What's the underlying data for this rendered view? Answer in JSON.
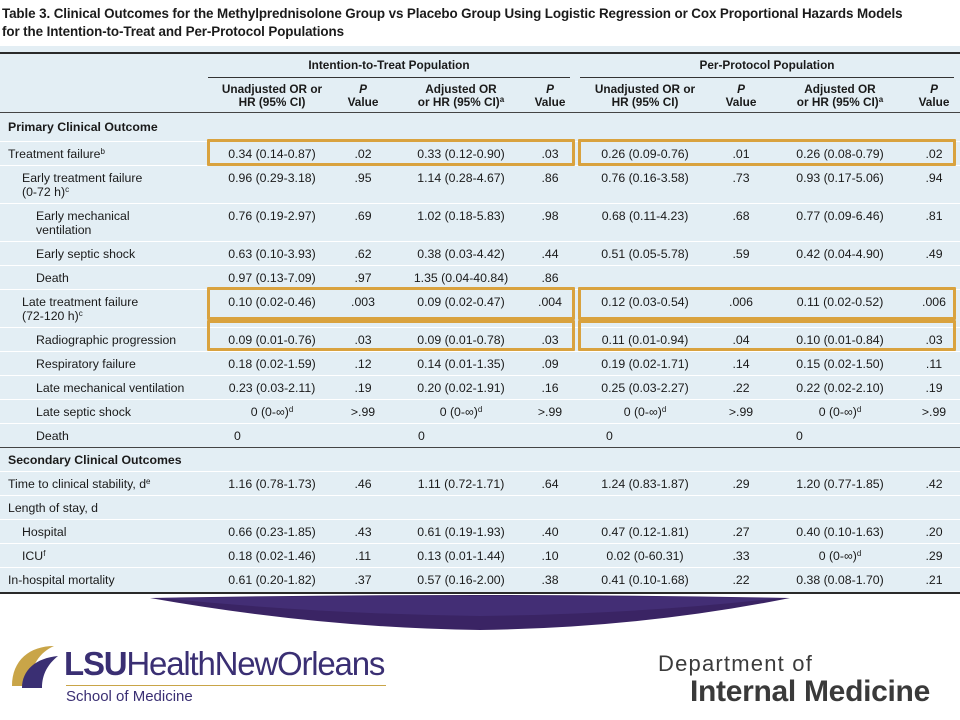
{
  "title": {
    "line1": "Table 3. Clinical Outcomes for the Methylprednisolone Group vs Placebo Group Using Logistic Regression or Cox Proportional Hazards Models",
    "line2": "for the Intention-to-Treat and Per-Protocol Populations"
  },
  "groups": {
    "itt": "Intention-to-Treat Population",
    "pp": "Per-Protocol Population"
  },
  "headers": {
    "unadj_1": "Unadjusted OR or",
    "unadj_2": "HR (95% CI)",
    "p_1": "P",
    "p_2": "Value",
    "adj_1": "Adjusted OR",
    "adj_2": "or HR (95% CI)",
    "adj_sup": "a"
  },
  "sections": {
    "primary": "Primary Clinical Outcome",
    "secondary": "Secondary Clinical Outcomes"
  },
  "rows": [
    {
      "l1": "Treatment failure",
      "sup": "b",
      "indent": 0,
      "v": [
        "0.34 (0.14-0.87)",
        ".02",
        "0.33 (0.12-0.90)",
        ".03",
        "0.26 (0.09-0.76)",
        ".01",
        "0.26 (0.08-0.79)",
        ".02"
      ]
    },
    {
      "l1": "Early treatment failure",
      "l2": "(0-72 h)",
      "sup": "c",
      "indent": 1,
      "v": [
        "0.96 (0.29-3.18)",
        ".95",
        "1.14 (0.28-4.67)",
        ".86",
        "0.76 (0.16-3.58)",
        ".73",
        "0.93 (0.17-5.06)",
        ".94"
      ]
    },
    {
      "l1": "Early mechanical",
      "l2": "ventilation",
      "sup": "",
      "indent": 2,
      "v": [
        "0.76 (0.19-2.97)",
        ".69",
        "1.02 (0.18-5.83)",
        ".98",
        "0.68 (0.11-4.23)",
        ".68",
        "0.77 (0.09-6.46)",
        ".81"
      ]
    },
    {
      "l1": "Early septic shock",
      "sup": "",
      "indent": 2,
      "v": [
        "0.63 (0.10-3.93)",
        ".62",
        "0.38 (0.03-4.42)",
        ".44",
        "0.51 (0.05-5.78)",
        ".59",
        "0.42 (0.04-4.90)",
        ".49"
      ]
    },
    {
      "l1": "Death",
      "sup": "",
      "indent": 2,
      "v": [
        "0.97 (0.13-7.09)",
        ".97",
        "1.35 (0.04-40.84)",
        ".86",
        "",
        "",
        "",
        ""
      ]
    },
    {
      "l1": "Late treatment failure",
      "l2": "(72-120 h)",
      "sup": "c",
      "indent": 1,
      "v": [
        "0.10 (0.02-0.46)",
        ".003",
        "0.09 (0.02-0.47)",
        ".004",
        "0.12 (0.03-0.54)",
        ".006",
        "0.11 (0.02-0.52)",
        ".006"
      ]
    },
    {
      "l1": "Radiographic progression",
      "sup": "",
      "indent": 2,
      "v": [
        "0.09 (0.01-0.76)",
        ".03",
        "0.09 (0.01-0.78)",
        ".03",
        "0.11 (0.01-0.94)",
        ".04",
        "0.10 (0.01-0.84)",
        ".03"
      ]
    },
    {
      "l1": "Respiratory failure",
      "sup": "",
      "indent": 2,
      "v": [
        "0.18 (0.02-1.59)",
        ".12",
        "0.14 (0.01-1.35)",
        ".09",
        "0.19 (0.02-1.71)",
        ".14",
        "0.15 (0.02-1.50)",
        ".11"
      ]
    },
    {
      "l1": "Late mechanical ventilation",
      "sup": "",
      "indent": 2,
      "v": [
        "0.23 (0.03-2.11)",
        ".19",
        "0.20 (0.02-1.91)",
        ".16",
        "0.25 (0.03-2.27)",
        ".22",
        "0.22 (0.02-2.10)",
        ".19"
      ]
    },
    {
      "l1": "Late septic shock",
      "sup": "",
      "indent": 2,
      "v": [
        "0 (0-∞)",
        ">.99",
        "0 (0-∞)",
        ">.99",
        "0 (0-∞)",
        ">.99",
        "0 (0-∞)",
        ">.99"
      ],
      "vsup": "d"
    },
    {
      "l1": "Death",
      "sup": "",
      "indent": 2,
      "v": [
        "0",
        "",
        "0",
        "",
        "0",
        "",
        "0",
        ""
      ]
    },
    {
      "section": "secondary"
    },
    {
      "l1": "Time to clinical stability, d",
      "sup": "e",
      "indent": 0,
      "v": [
        "1.16 (0.78-1.73)",
        ".46",
        "1.11 (0.72-1.71)",
        ".64",
        "1.24 (0.83-1.87)",
        ".29",
        "1.20 (0.77-1.85)",
        ".42"
      ]
    },
    {
      "l1": "Length of stay, d",
      "sup": "",
      "indent": 0,
      "v": [
        "",
        "",
        "",
        "",
        "",
        "",
        "",
        ""
      ]
    },
    {
      "l1": "Hospital",
      "sup": "",
      "indent": 1,
      "v": [
        "0.66 (0.23-1.85)",
        ".43",
        "0.61 (0.19-1.93)",
        ".40",
        "0.47 (0.12-1.81)",
        ".27",
        "0.40 (0.10-1.63)",
        ".20"
      ]
    },
    {
      "l1": "ICU",
      "sup": "f",
      "indent": 1,
      "v": [
        "0.18 (0.02-1.46)",
        ".11",
        "0.13 (0.01-1.44)",
        ".10",
        "0.02 (0-60.31)",
        ".33",
        "0 (0-∞)",
        ".29"
      ],
      "vsup7": "d"
    },
    {
      "l1": "In-hospital mortality",
      "sup": "",
      "indent": 0,
      "v": [
        "0.61 (0.20-1.82)",
        ".37",
        "0.57 (0.16-2.00)",
        ".38",
        "0.41 (0.10-1.68)",
        ".22",
        "0.38 (0.08-1.70)",
        ".21"
      ]
    }
  ],
  "highlighted_rows": [
    "Treatment failure",
    "Late treatment failure",
    "Radiographic progression"
  ],
  "colors": {
    "table_bg": "#e3eef4",
    "highlight": "#d9a23e",
    "swoosh": "#3a2464",
    "lsu_purple": "#3a2f73",
    "lsu_gold": "#c9a548"
  },
  "footer": {
    "lsu_a": "LSU",
    "lsu_b": "HealthNewOrleans",
    "lsu_sub": "School of Medicine",
    "dept_1": "Department of",
    "dept_2": "Internal Medicine"
  }
}
